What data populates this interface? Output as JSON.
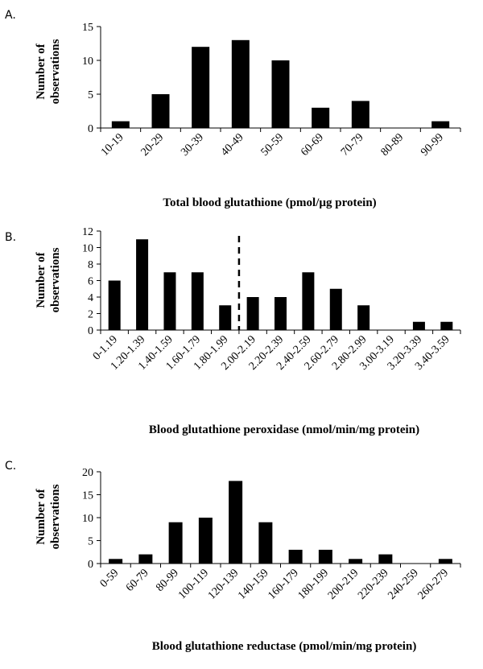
{
  "chart_data": [
    {
      "type": "bar",
      "panel_label": "A.",
      "ylabel": [
        "Number of",
        "observations"
      ],
      "xlabel": "Total blood glutathione (pmol/µg protein)",
      "categories": [
        "10-19",
        "20-29",
        "30-39",
        "40-49",
        "50-59",
        "60-69",
        "70-79",
        "80-89",
        "90-99"
      ],
      "values": [
        1,
        5,
        12,
        13,
        10,
        3,
        4,
        0,
        1
      ],
      "ylim": [
        0,
        15
      ],
      "yticks": [
        0,
        5,
        10,
        15
      ],
      "bar_color": "#000000",
      "grid": false
    },
    {
      "type": "bar",
      "panel_label": "B.",
      "ylabel": [
        "Number of",
        "observations"
      ],
      "xlabel": "Blood glutathione peroxidase (nmol/min/mg protein)",
      "categories": [
        "0-1.19",
        "1.20-1.39",
        "1.40-1.59",
        "1.60-1.79",
        "1.80-1.99",
        "2.00-2.19",
        "2.20-2.39",
        "2.40-2.59",
        "2.60-2.79",
        "2.80-2.99",
        "3.00-3.19",
        "3.20-3.39",
        "3.40-3.59"
      ],
      "values": [
        6,
        11,
        7,
        7,
        3,
        4,
        4,
        7,
        5,
        3,
        0,
        1,
        1
      ],
      "ylim": [
        0,
        12
      ],
      "yticks": [
        0,
        2,
        4,
        6,
        8,
        10,
        12
      ],
      "bar_color": "#000000",
      "grid": false,
      "dashed_divider_after_category_index": 4
    },
    {
      "type": "bar",
      "panel_label": "C.",
      "ylabel": [
        "Number of",
        "observations"
      ],
      "xlabel": "Blood glutathione reductase (pmol/min/mg protein)",
      "categories": [
        "0-59",
        "60-79",
        "80-99",
        "100-119",
        "120-139",
        "140-159",
        "160-179",
        "180-199",
        "200-219",
        "220-239",
        "240-259",
        "260-279"
      ],
      "values": [
        1,
        2,
        9,
        10,
        18,
        9,
        3,
        3,
        1,
        2,
        0,
        1
      ],
      "ylim": [
        0,
        20
      ],
      "yticks": [
        0,
        5,
        10,
        15,
        20
      ],
      "bar_color": "#000000",
      "grid": false
    }
  ]
}
